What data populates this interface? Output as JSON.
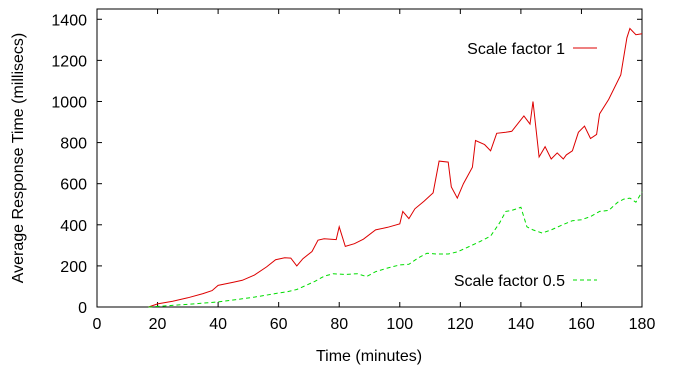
{
  "chart_data": {
    "type": "line",
    "xlabel": "Time (minutes)",
    "ylabel": "Average Response Time (millisecs)",
    "xlim": [
      0,
      180
    ],
    "ylim": [
      0,
      1450
    ],
    "xticks": [
      0,
      20,
      40,
      60,
      80,
      100,
      120,
      140,
      160,
      180
    ],
    "yticks": [
      0,
      200,
      400,
      600,
      800,
      1000,
      1200,
      1400
    ],
    "grid": false,
    "series": [
      {
        "name": "Scale factor 1",
        "color": "#dd0000",
        "style": "solid",
        "points": [
          [
            17,
            0
          ],
          [
            20,
            15
          ],
          [
            25,
            28
          ],
          [
            30,
            45
          ],
          [
            35,
            65
          ],
          [
            38,
            80
          ],
          [
            40,
            105
          ],
          [
            45,
            120
          ],
          [
            48,
            130
          ],
          [
            52,
            155
          ],
          [
            56,
            195
          ],
          [
            59,
            230
          ],
          [
            62,
            240
          ],
          [
            64,
            238
          ],
          [
            66,
            200
          ],
          [
            68,
            235
          ],
          [
            71,
            270
          ],
          [
            73,
            325
          ],
          [
            75,
            332
          ],
          [
            79,
            328
          ],
          [
            80,
            390
          ],
          [
            82,
            295
          ],
          [
            85,
            308
          ],
          [
            88,
            330
          ],
          [
            92,
            375
          ],
          [
            96,
            388
          ],
          [
            100,
            405
          ],
          [
            101,
            465
          ],
          [
            103,
            430
          ],
          [
            105,
            478
          ],
          [
            108,
            515
          ],
          [
            111,
            555
          ],
          [
            113,
            710
          ],
          [
            116,
            705
          ],
          [
            117,
            585
          ],
          [
            119,
            530
          ],
          [
            121,
            600
          ],
          [
            124,
            680
          ],
          [
            125,
            810
          ],
          [
            128,
            790
          ],
          [
            130,
            760
          ],
          [
            132,
            845
          ],
          [
            135,
            850
          ],
          [
            137,
            855
          ],
          [
            141,
            930
          ],
          [
            143,
            890
          ],
          [
            144,
            1000
          ],
          [
            146,
            730
          ],
          [
            148,
            780
          ],
          [
            150,
            720
          ],
          [
            152,
            750
          ],
          [
            154,
            720
          ],
          [
            155,
            740
          ],
          [
            157,
            760
          ],
          [
            159,
            850
          ],
          [
            161,
            880
          ],
          [
            163,
            820
          ],
          [
            165,
            840
          ],
          [
            166,
            940
          ],
          [
            169,
            1010
          ],
          [
            173,
            1130
          ],
          [
            175,
            1310
          ],
          [
            176,
            1355
          ],
          [
            178,
            1325
          ],
          [
            180,
            1330
          ]
        ]
      },
      {
        "name": "Scale factor 0.5",
        "color": "#00dd00",
        "style": "dashed",
        "points": [
          [
            17,
            0
          ],
          [
            22,
            5
          ],
          [
            27,
            10
          ],
          [
            32,
            15
          ],
          [
            36,
            20
          ],
          [
            40,
            25
          ],
          [
            44,
            32
          ],
          [
            48,
            40
          ],
          [
            52,
            48
          ],
          [
            56,
            58
          ],
          [
            60,
            68
          ],
          [
            63,
            75
          ],
          [
            66,
            85
          ],
          [
            69,
            105
          ],
          [
            72,
            125
          ],
          [
            75,
            150
          ],
          [
            78,
            162
          ],
          [
            82,
            158
          ],
          [
            86,
            162
          ],
          [
            89,
            148
          ],
          [
            92,
            172
          ],
          [
            96,
            190
          ],
          [
            100,
            205
          ],
          [
            103,
            208
          ],
          [
            106,
            238
          ],
          [
            109,
            262
          ],
          [
            112,
            258
          ],
          [
            116,
            258
          ],
          [
            119,
            268
          ],
          [
            122,
            288
          ],
          [
            126,
            315
          ],
          [
            130,
            345
          ],
          [
            133,
            410
          ],
          [
            135,
            465
          ],
          [
            137,
            470
          ],
          [
            140,
            485
          ],
          [
            142,
            390
          ],
          [
            144,
            375
          ],
          [
            147,
            360
          ],
          [
            150,
            375
          ],
          [
            153,
            395
          ],
          [
            157,
            420
          ],
          [
            160,
            425
          ],
          [
            163,
            440
          ],
          [
            166,
            465
          ],
          [
            169,
            470
          ],
          [
            172,
            510
          ],
          [
            174,
            525
          ],
          [
            176,
            530
          ],
          [
            178,
            510
          ],
          [
            180,
            560
          ]
        ]
      }
    ]
  }
}
